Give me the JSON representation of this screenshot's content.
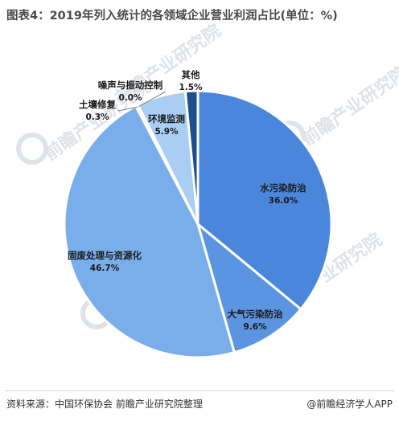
{
  "title": "图表4：2019年列入统计的各领域企业营业利润占比(单位：%)",
  "footer": {
    "source": "资料来源：中国环保协会 前瞻产业研究院整理",
    "credit": "@前瞻经济学人APP"
  },
  "watermark": {
    "text": "前瞻产业研究院"
  },
  "colors": {
    "title": "#4a4a4a",
    "slice_stroke": "#ffffff",
    "label": "#1a1a1a"
  },
  "chart_data": {
    "type": "pie",
    "title": "图表4：2019年列入统计的各领域企业营业利润占比(单位：%)",
    "unit": "%",
    "start_angle_deg": 0,
    "direction": "clockwise",
    "slices": [
      {
        "label": "水污染防治",
        "value": 36.0,
        "display": "36.0%",
        "color": "#4a87dc"
      },
      {
        "label": "大气污染防治",
        "value": 9.6,
        "display": "9.6%",
        "color": "#5b95e1"
      },
      {
        "label": "固废处理与资源化",
        "value": 46.7,
        "display": "46.7%",
        "color": "#7aaeea"
      },
      {
        "label": "土壤修复",
        "value": 0.3,
        "display": "0.3%",
        "color": "#8fbcef"
      },
      {
        "label": "噪声与振动控制",
        "value": 0.0,
        "display": "0.0%",
        "color": "#a3c8f1"
      },
      {
        "label": "环境监测",
        "value": 5.9,
        "display": "5.9%",
        "color": "#a9cdf3"
      },
      {
        "label": "其他",
        "value": 1.5,
        "display": "1.5%",
        "color": "#1f4e8c"
      }
    ]
  }
}
